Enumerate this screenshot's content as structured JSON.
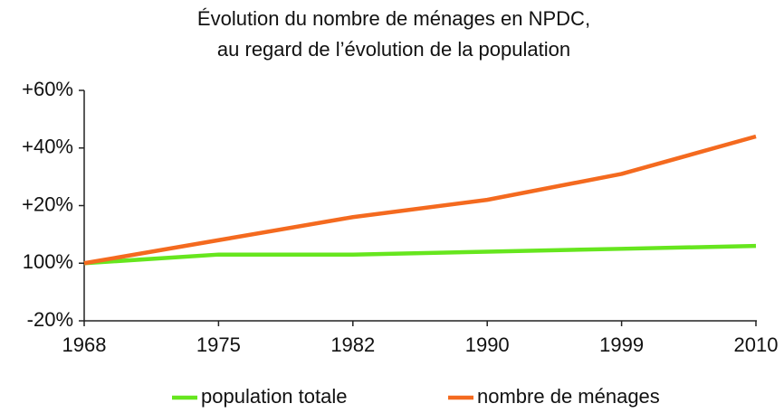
{
  "chart_data": {
    "type": "line",
    "title": [
      "Évolution du nombre de ménages en NPDC,",
      "au regard de l’évolution de la population"
    ],
    "categories": [
      "1968",
      "1975",
      "1982",
      "1990",
      "1999",
      "2010"
    ],
    "series": [
      {
        "name": "population totale",
        "color": "#66e61e",
        "values": [
          0,
          3,
          3,
          4,
          5,
          6
        ]
      },
      {
        "name": "nombre de ménages",
        "color": "#f46a1f",
        "values": [
          0,
          8,
          16,
          22,
          31,
          44
        ]
      }
    ],
    "ylim": [
      -20,
      60
    ],
    "yticks": [
      {
        "value": -20,
        "label": "-20%"
      },
      {
        "value": 0,
        "label": "100%"
      },
      {
        "value": 20,
        "label": "+20%"
      },
      {
        "value": 40,
        "label": "+40%"
      },
      {
        "value": 60,
        "label": "+60%"
      }
    ],
    "legend": "bottom"
  }
}
